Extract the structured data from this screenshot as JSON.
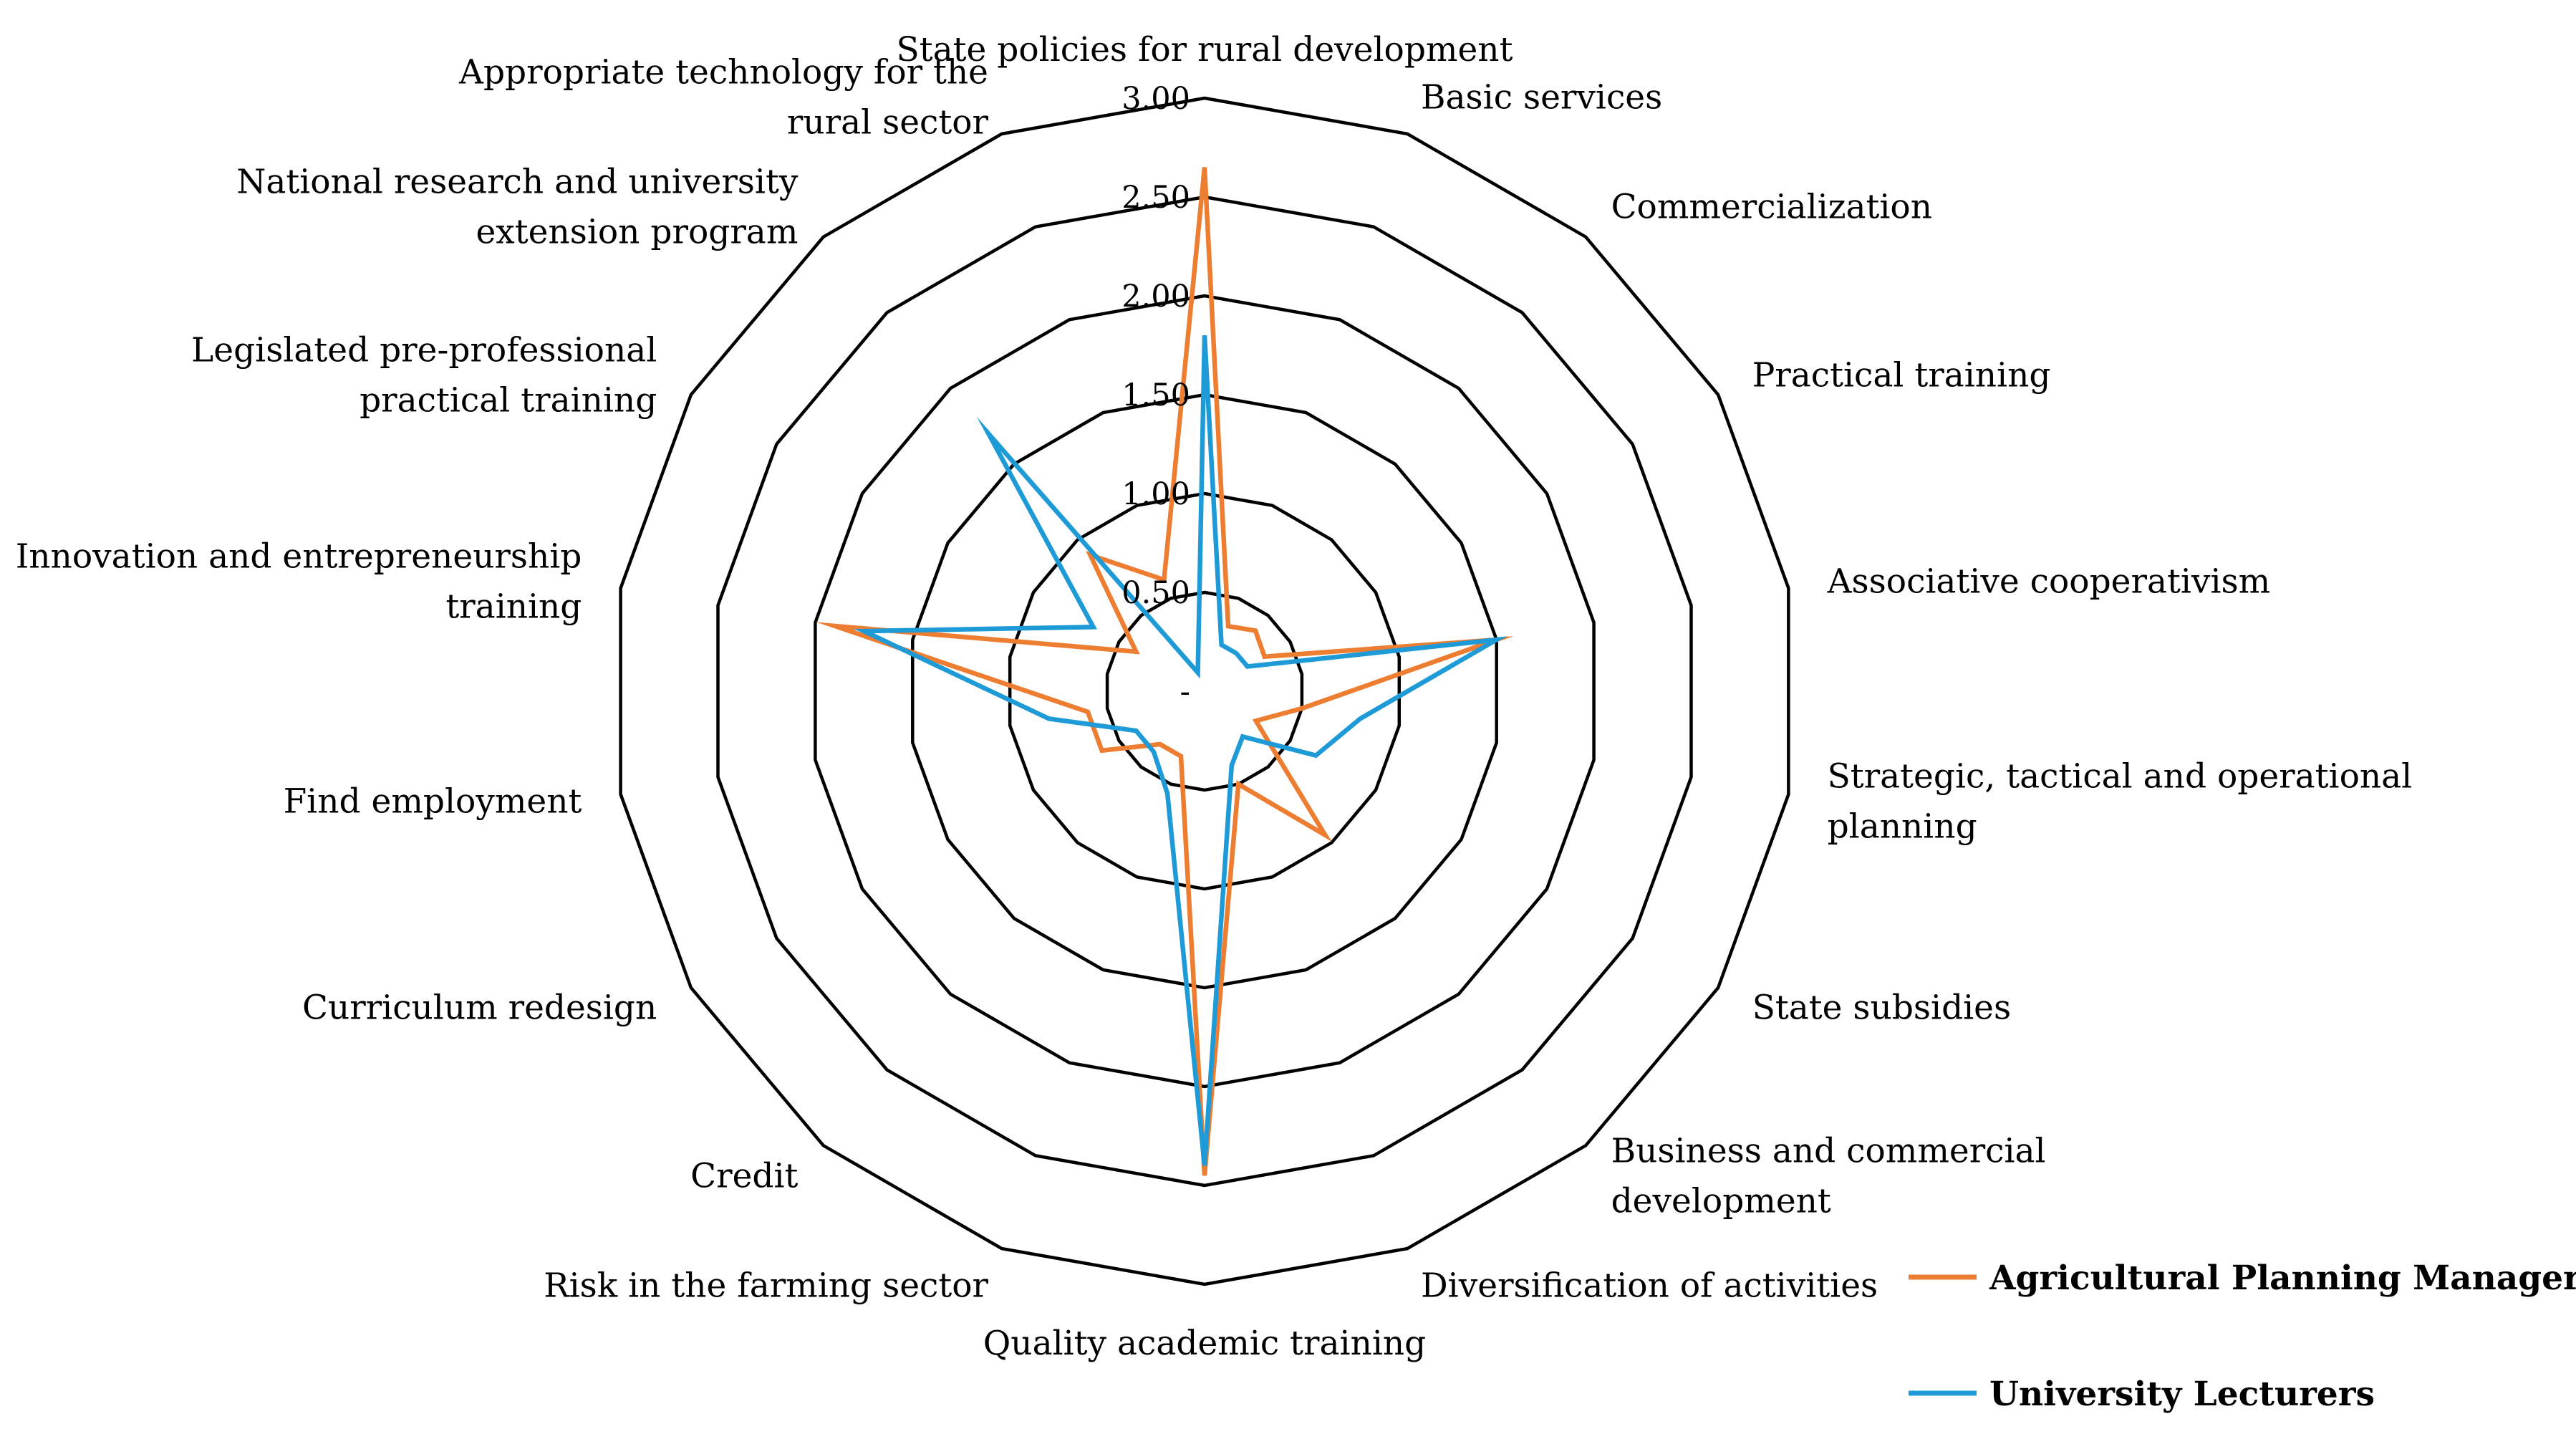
{
  "chart_data": {
    "type": "radar",
    "title": "",
    "categories": [
      "State policies for rural development",
      "Basic services",
      "Commercialization",
      "Practical training",
      "Associative cooperativism",
      "Strategic, tactical and operational planning",
      "State subsidies",
      "Business and commercial development",
      "Diversification of activities",
      "Quality academic training",
      "Risk in the farming sector",
      "Credit",
      "Curriculum redesign",
      "Find employment",
      "Innovation and entrepreneurship training",
      "Legislated pre-professional practical training",
      "National research and university extension program",
      "Appropriate technology for the rural sector"
    ],
    "category_label_lines": [
      [
        "State policies for rural development"
      ],
      [
        "Basic services"
      ],
      [
        "Commercialization"
      ],
      [
        "Practical training"
      ],
      [
        "Associative cooperativism"
      ],
      [
        "Strategic, tactical and operational",
        "planning"
      ],
      [
        "State subsidies"
      ],
      [
        "Business and commercial",
        "development"
      ],
      [
        "Diversification of activities"
      ],
      [
        "Quality academic training"
      ],
      [
        "Risk in the farming sector"
      ],
      [
        "Credit"
      ],
      [
        "Curriculum redesign"
      ],
      [
        "Find employment"
      ],
      [
        "Innovation and entrepreneurship",
        "training"
      ],
      [
        "Legislated pre-professional",
        "practical training"
      ],
      [
        "National research and university",
        "extension program"
      ],
      [
        "Appropriate technology for the",
        "rural sector"
      ]
    ],
    "series": [
      {
        "name": "Agricultural Planning Managers",
        "color": "#ED7D31",
        "values": [
          2.65,
          0.35,
          0.4,
          0.35,
          1.5,
          0.5,
          0.3,
          0.95,
          0.5,
          2.45,
          0.35,
          0.35,
          0.6,
          0.6,
          1.9,
          0.4,
          0.9,
          0.6
        ]
      },
      {
        "name": "University Lecturers",
        "color": "#1E9BD7",
        "values": [
          1.8,
          0.25,
          0.25,
          0.25,
          1.5,
          0.8,
          0.65,
          0.3,
          0.4,
          2.4,
          0.55,
          0.4,
          0.4,
          0.8,
          1.75,
          0.65,
          1.7,
          0.1
        ]
      }
    ],
    "rlim": [
      0,
      3
    ],
    "ticks": [
      {
        "value": 0,
        "label": "-"
      },
      {
        "value": 0.5,
        "label": "0.50"
      },
      {
        "value": 1.0,
        "label": "1.00"
      },
      {
        "value": 1.5,
        "label": "1.50"
      },
      {
        "value": 2.0,
        "label": "2.00"
      },
      {
        "value": 2.5,
        "label": "2.50"
      },
      {
        "value": 3.0,
        "label": "3.00"
      }
    ],
    "legend_position": "bottom-right"
  }
}
